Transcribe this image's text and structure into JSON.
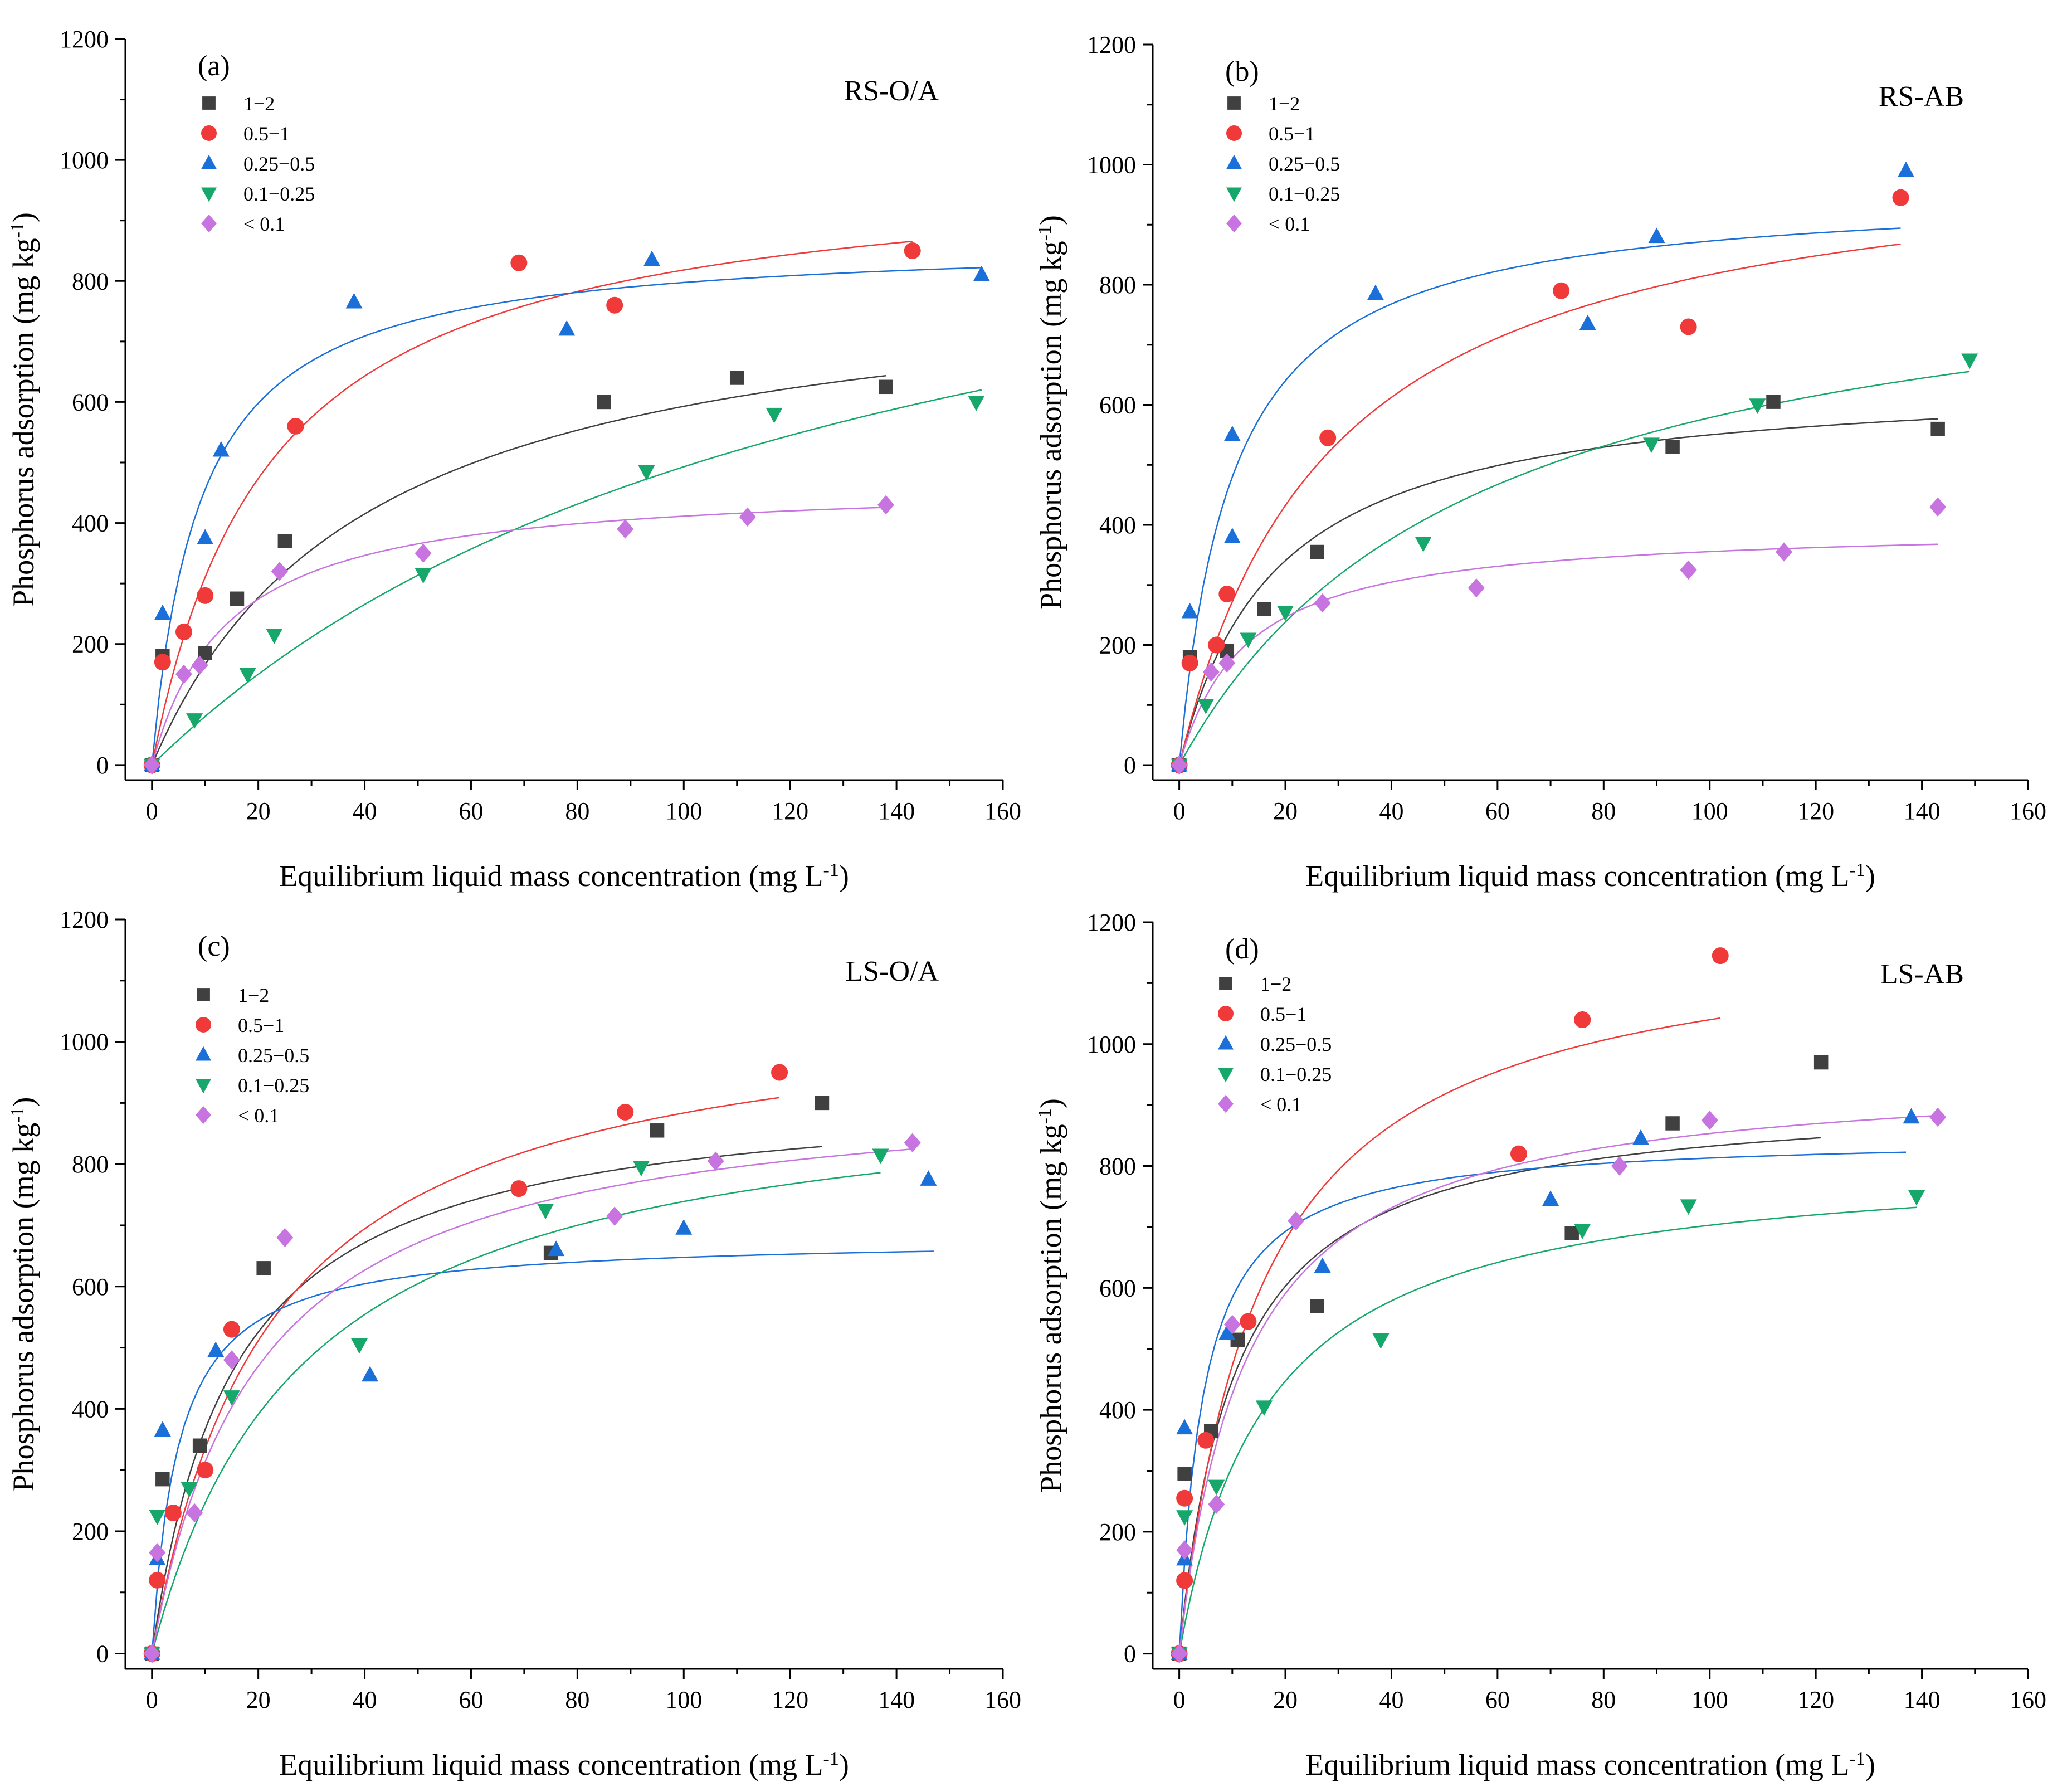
{
  "chart_data": [
    {
      "type": "scatter",
      "panel": "(a)",
      "title": "RS-O/A",
      "xlabel": "Equilibrium liquid mass concentration (mg L",
      "xlabel_sup": "-1",
      "xlabel_end": ")",
      "ylabel": "Phosphorus adsorption (mg kg",
      "ylabel_sup": "-1",
      "ylabel_end": ")",
      "xlim": [
        -5,
        160
      ],
      "ylim": [
        -25,
        1200
      ],
      "xticks": [
        0,
        20,
        40,
        60,
        80,
        100,
        120,
        140,
        160
      ],
      "yticks": [
        0,
        200,
        400,
        600,
        800,
        1000,
        1200
      ],
      "series": [
        {
          "name": "1−2",
          "color": "#404040",
          "marker": "square",
          "fit_qmax": 830,
          "fit_k": 0.025,
          "fit_xmax": 138,
          "x": [
            0,
            2,
            10,
            16,
            25,
            85,
            110,
            138
          ],
          "y": [
            0,
            180,
            185,
            275,
            370,
            600,
            640,
            625
          ]
        },
        {
          "name": "0.5−1",
          "color": "#f03a3a",
          "marker": "circle",
          "fit_qmax": 1000,
          "fit_k": 0.045,
          "fit_xmax": 143,
          "x": [
            0,
            2,
            6,
            10,
            27,
            69,
            87,
            143
          ],
          "y": [
            0,
            170,
            220,
            280,
            560,
            830,
            760,
            850
          ]
        },
        {
          "name": "0.25−0.5",
          "color": "#1a6fd8",
          "marker": "triangle-up",
          "fit_qmax": 870,
          "fit_k": 0.11,
          "fit_xmax": 156,
          "x": [
            0,
            2,
            10,
            13,
            38,
            78,
            94,
            156
          ],
          "y": [
            0,
            250,
            375,
            520,
            765,
            720,
            835,
            810
          ]
        },
        {
          "name": "0.1−0.25",
          "color": "#15a86a",
          "marker": "triangle-down",
          "fit_qmax": 1150,
          "fit_k": 0.0075,
          "fit_xmax": 156,
          "x": [
            0,
            8,
            18,
            23,
            51,
            93,
            117,
            155
          ],
          "y": [
            0,
            75,
            150,
            215,
            315,
            485,
            580,
            600
          ]
        },
        {
          "name": "< 0.1",
          "color": "#c774e0",
          "marker": "diamond",
          "fit_qmax": 470,
          "fit_k": 0.07,
          "fit_xmax": 139,
          "x": [
            0,
            6,
            9,
            24,
            51,
            89,
            112,
            138
          ],
          "y": [
            0,
            150,
            165,
            320,
            350,
            390,
            410,
            430
          ]
        }
      ]
    },
    {
      "type": "scatter",
      "panel": "(b)",
      "title": "RS-AB",
      "xlabel": "Equilibrium liquid mass concentration (mg L",
      "xlabel_sup": "-1",
      "xlabel_end": ")",
      "ylabel": "Phosphorus adsorption (mg kg",
      "ylabel_sup": "-1",
      "ylabel_end": ")",
      "xlim": [
        -5,
        160
      ],
      "ylim": [
        -25,
        1200
      ],
      "xticks": [
        0,
        20,
        40,
        60,
        80,
        100,
        120,
        140,
        160
      ],
      "yticks": [
        0,
        200,
        400,
        600,
        800,
        1000,
        1200
      ],
      "series": [
        {
          "name": "1−2",
          "color": "#404040",
          "marker": "square",
          "fit_qmax": 650,
          "fit_k": 0.055,
          "fit_xmax": 143,
          "x": [
            0,
            2,
            9,
            16,
            26,
            93,
            112,
            143
          ],
          "y": [
            0,
            180,
            190,
            260,
            355,
            530,
            605,
            560
          ]
        },
        {
          "name": "0.5−1",
          "color": "#f03a3a",
          "marker": "circle",
          "fit_qmax": 1050,
          "fit_k": 0.035,
          "fit_xmax": 136,
          "x": [
            0,
            2,
            7,
            9,
            28,
            72,
            96,
            136
          ],
          "y": [
            0,
            170,
            200,
            285,
            545,
            790,
            730,
            945
          ]
        },
        {
          "name": "0.25−0.5",
          "color": "#1a6fd8",
          "marker": "triangle-up",
          "fit_qmax": 960,
          "fit_k": 0.1,
          "fit_xmax": 136,
          "x": [
            0,
            2,
            10,
            10,
            37,
            77,
            90,
            137
          ],
          "y": [
            0,
            255,
            380,
            550,
            785,
            735,
            880,
            990
          ]
        },
        {
          "name": "0.1−0.25",
          "color": "#15a86a",
          "marker": "triangle-down",
          "fit_qmax": 900,
          "fit_k": 0.018,
          "fit_xmax": 149,
          "x": [
            0,
            5,
            13,
            20,
            46,
            89,
            109,
            149
          ],
          "y": [
            0,
            100,
            210,
            255,
            370,
            535,
            600,
            675
          ]
        },
        {
          "name": "< 0.1",
          "color": "#c774e0",
          "marker": "diamond",
          "fit_qmax": 400,
          "fit_k": 0.08,
          "fit_xmax": 143,
          "x": [
            0,
            6,
            9,
            27,
            56,
            96,
            114,
            143
          ],
          "y": [
            0,
            155,
            170,
            270,
            295,
            325,
            355,
            430
          ]
        }
      ]
    },
    {
      "type": "scatter",
      "panel": "(c)",
      "title": "LS-O/A",
      "xlabel": "Equilibrium liquid mass concentration (mg L",
      "xlabel_sup": "-1",
      "xlabel_end": ")",
      "ylabel": "Phosphorus adsorption (mg kg",
      "ylabel_sup": "-1",
      "ylabel_end": ")",
      "xlim": [
        -5,
        160
      ],
      "ylim": [
        -25,
        1200
      ],
      "xticks": [
        0,
        20,
        40,
        60,
        80,
        100,
        120,
        140,
        160
      ],
      "yticks": [
        0,
        200,
        400,
        600,
        800,
        1000,
        1200
      ],
      "series": [
        {
          "name": "1−2",
          "color": "#404040",
          "marker": "square",
          "fit_qmax": 930,
          "fit_k": 0.065,
          "fit_xmax": 126,
          "x": [
            0,
            2,
            9,
            21,
            75,
            95,
            126
          ],
          "y": [
            0,
            285,
            340,
            630,
            655,
            855,
            900
          ]
        },
        {
          "name": "0.5−1",
          "color": "#f03a3a",
          "marker": "circle",
          "fit_qmax": 1080,
          "fit_k": 0.045,
          "fit_xmax": 118,
          "x": [
            0,
            1,
            4,
            10,
            15,
            69,
            89,
            118
          ],
          "y": [
            0,
            120,
            230,
            300,
            530,
            760,
            885,
            950
          ]
        },
        {
          "name": "0.25−0.5",
          "color": "#1a6fd8",
          "marker": "triangle-up",
          "fit_qmax": 680,
          "fit_k": 0.2,
          "fit_xmax": 147,
          "x": [
            0,
            1,
            2,
            12,
            41,
            76,
            100,
            146
          ],
          "y": [
            0,
            155,
            365,
            495,
            455,
            660,
            695,
            775
          ]
        },
        {
          "name": "0.1−0.25",
          "color": "#15a86a",
          "marker": "triangle-down",
          "fit_qmax": 950,
          "fit_k": 0.035,
          "fit_xmax": 137,
          "x": [
            0,
            1,
            7,
            15,
            39,
            74,
            92,
            137
          ],
          "y": [
            0,
            225,
            270,
            420,
            505,
            725,
            795,
            815
          ]
        },
        {
          "name": "< 0.1",
          "color": "#c774e0",
          "marker": "diamond",
          "fit_qmax": 940,
          "fit_k": 0.05,
          "fit_xmax": 143,
          "x": [
            0,
            1,
            8,
            15,
            25,
            87,
            106,
            143
          ],
          "y": [
            0,
            165,
            230,
            480,
            680,
            715,
            805,
            835
          ]
        }
      ]
    },
    {
      "type": "scatter",
      "panel": "(d)",
      "title": "LS-AB",
      "xlabel": "Equilibrium liquid mass concentration (mg L",
      "xlabel_sup": "-1",
      "xlabel_end": ")",
      "ylabel": "Phosphorus adsorption (mg kg",
      "ylabel_sup": "-1",
      "ylabel_end": ")",
      "xlim": [
        -5,
        160
      ],
      "ylim": [
        -25,
        1200
      ],
      "xticks": [
        0,
        20,
        40,
        60,
        80,
        100,
        120,
        140,
        160
      ],
      "yticks": [
        0,
        200,
        400,
        600,
        800,
        1000,
        1200
      ],
      "series": [
        {
          "name": "1−2",
          "color": "#404040",
          "marker": "square",
          "fit_qmax": 920,
          "fit_k": 0.095,
          "fit_xmax": 121,
          "x": [
            0,
            1,
            6,
            11,
            26,
            74,
            93,
            121
          ],
          "y": [
            0,
            295,
            365,
            515,
            570,
            690,
            870,
            970
          ]
        },
        {
          "name": "0.5−1",
          "color": "#f03a3a",
          "marker": "circle",
          "fit_qmax": 1200,
          "fit_k": 0.065,
          "fit_xmax": 102,
          "x": [
            0,
            1,
            1,
            5,
            13,
            64,
            76,
            102
          ],
          "y": [
            0,
            120,
            255,
            350,
            545,
            820,
            1040,
            1145
          ]
        },
        {
          "name": "0.25−0.5",
          "color": "#1a6fd8",
          "marker": "triangle-up",
          "fit_qmax": 850,
          "fit_k": 0.22,
          "fit_xmax": 137,
          "x": [
            0,
            1,
            1,
            9,
            27,
            70,
            87,
            138
          ],
          "y": [
            0,
            155,
            370,
            525,
            635,
            745,
            845,
            880
          ]
        },
        {
          "name": "0.1−0.25",
          "color": "#15a86a",
          "marker": "triangle-down",
          "fit_qmax": 820,
          "fit_k": 0.06,
          "fit_xmax": 139,
          "x": [
            0,
            1,
            7,
            16,
            38,
            76,
            96,
            139
          ],
          "y": [
            0,
            225,
            275,
            405,
            515,
            695,
            735,
            750
          ]
        },
        {
          "name": "< 0.1",
          "color": "#c774e0",
          "marker": "diamond",
          "fit_qmax": 960,
          "fit_k": 0.08,
          "fit_xmax": 143,
          "x": [
            0,
            1,
            7,
            10,
            22,
            83,
            100,
            143
          ],
          "y": [
            0,
            170,
            245,
            540,
            710,
            800,
            875,
            880
          ]
        }
      ]
    }
  ]
}
